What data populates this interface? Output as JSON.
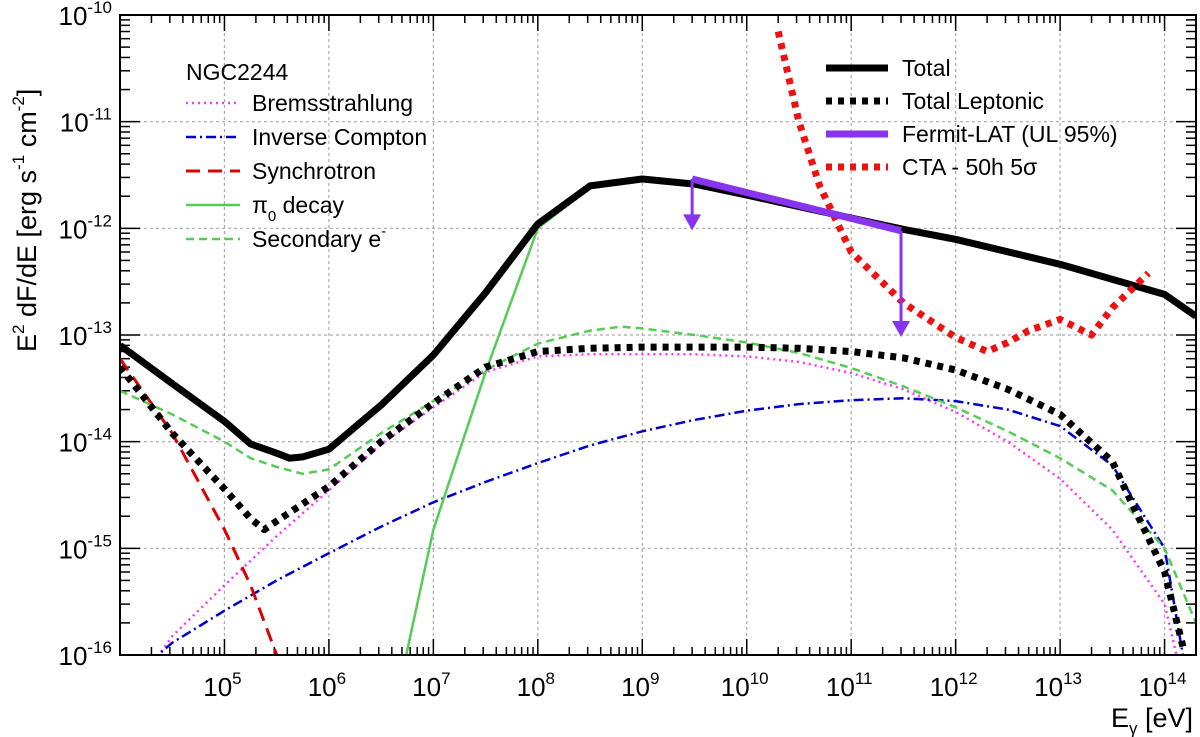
{
  "chart_data": {
    "type": "line",
    "x_scale": "log",
    "y_scale": "log",
    "xlim": [
      10000,
      200000000000000
    ],
    "ylim": [
      1e-16,
      1e-10
    ],
    "grid": true,
    "xlabel": "E",
    "xlabel_sub": "γ",
    "xlabel_unit": "[eV]",
    "ylabel_parts": [
      "E",
      "2",
      " dF/dE [erg s",
      "-1",
      " cm",
      "-2",
      "]"
    ],
    "x_ticks": [
      {
        "exp": 5,
        "label_base": "10",
        "label_exp": "5"
      },
      {
        "exp": 6,
        "label_base": "10",
        "label_exp": "6"
      },
      {
        "exp": 7,
        "label_base": "10",
        "label_exp": "7"
      },
      {
        "exp": 8,
        "label_base": "10",
        "label_exp": "8"
      },
      {
        "exp": 9,
        "label_base": "10",
        "label_exp": "9"
      },
      {
        "exp": 10,
        "label_base": "10",
        "label_exp": "10"
      },
      {
        "exp": 11,
        "label_base": "10",
        "label_exp": "11"
      },
      {
        "exp": 12,
        "label_base": "10",
        "label_exp": "12"
      },
      {
        "exp": 13,
        "label_base": "10",
        "label_exp": "13"
      },
      {
        "exp": 14,
        "label_base": "10",
        "label_exp": "14"
      }
    ],
    "y_ticks": [
      {
        "exp": -16,
        "label_base": "10",
        "label_exp": "-16"
      },
      {
        "exp": -15,
        "label_base": "10",
        "label_exp": "-15"
      },
      {
        "exp": -14,
        "label_base": "10",
        "label_exp": "-14"
      },
      {
        "exp": -13,
        "label_base": "10",
        "label_exp": "-13"
      },
      {
        "exp": -12,
        "label_base": "10",
        "label_exp": "-12"
      },
      {
        "exp": -11,
        "label_base": "10",
        "label_exp": "-11"
      },
      {
        "exp": -10,
        "label_base": "10",
        "label_exp": "-10"
      }
    ],
    "legend_left": {
      "title": "NGC2244",
      "placement": "top-left",
      "entries": [
        {
          "series": "bremsstrahlung",
          "text": "Bremsstrahlung"
        },
        {
          "series": "inverse_compton",
          "text": "Inverse Compton"
        },
        {
          "series": "synchrotron",
          "text": "Synchrotron"
        },
        {
          "series": "pi0_decay",
          "text": "π",
          "sub": "0",
          "text_after": " decay"
        },
        {
          "series": "secondary_e",
          "text": "Secondary e",
          "sup": "-"
        }
      ]
    },
    "legend_right": {
      "placement": "top-right",
      "entries": [
        {
          "series": "total",
          "text": "Total"
        },
        {
          "series": "total_leptonic",
          "text": "Total Leptonic"
        },
        {
          "series": "fermi_ul",
          "text": "Fermit-LAT (UL 95%)"
        },
        {
          "series": "cta",
          "text": "CTA - 50h 5σ"
        }
      ]
    },
    "series": [
      {
        "key": "total",
        "color": "#000000",
        "width": 7,
        "dash": "",
        "x": [
          10000,
          31600,
          100000,
          178000,
          316000,
          420000,
          562000,
          1000000,
          3160000,
          10000000,
          31600000,
          100000000,
          316000000,
          1000000000,
          3160000000,
          10000000000,
          31600000000,
          100000000000,
          316000000000,
          1000000000000,
          10000000000000,
          100000000000000,
          200000000000000
        ],
        "y": [
          8e-14,
          3.5e-14,
          1.55e-14,
          9.5e-15,
          7.8e-15,
          7e-15,
          7.2e-15,
          8.5e-15,
          2.2e-14,
          6.5e-14,
          2.5e-13,
          1.1e-12,
          2.5e-12,
          2.9e-12,
          2.6e-12,
          2.05e-12,
          1.6e-12,
          1.25e-12,
          9.8e-13,
          7.9e-13,
          4.6e-13,
          2.4e-13,
          1.5e-13
        ]
      },
      {
        "key": "total_leptonic",
        "color": "#000000",
        "width": 7,
        "dash": "6,6",
        "x": [
          10000,
          31600,
          100000,
          178000,
          240000,
          316000,
          1000000,
          3160000,
          10000000,
          31600000,
          100000000,
          316000000,
          1000000000,
          3160000000,
          10000000000,
          31600000000,
          100000000000,
          316000000000,
          1000000000000,
          3160000000000,
          10000000000000,
          31600000000000,
          50000000000000,
          100000000000000,
          150000000000000
        ],
        "y": [
          5e-14,
          1.2e-14,
          3.6e-15,
          1.9e-15,
          1.5e-15,
          1.8e-15,
          3.8e-15,
          1e-14,
          2.3e-14,
          5e-14,
          7e-14,
          7.5e-14,
          7.7e-14,
          7.7e-14,
          7.7e-14,
          7.5e-14,
          7e-14,
          6.1e-14,
          4.7e-14,
          3.1e-14,
          1.8e-14,
          6.5e-15,
          2.5e-15,
          6e-16,
          1.2e-16
        ]
      },
      {
        "key": "bremsstrahlung",
        "color": "#ff33ff",
        "width": 2.5,
        "dash": "2,4",
        "x": [
          10000,
          31600,
          100000,
          316000,
          1000000,
          3160000,
          10000000,
          31600000,
          100000000,
          316000000,
          1000000000,
          3160000000,
          10000000000,
          31600000000,
          100000000000,
          316000000000,
          1000000000000,
          3160000000000,
          10000000000000,
          31600000000000,
          100000000000000,
          130000000000000
        ],
        "y": [
          3e-17,
          1.5e-16,
          4.5e-16,
          1.3e-15,
          3.5e-15,
          9.5e-15,
          2.1e-14,
          4.5e-14,
          6.3e-14,
          6.6e-14,
          6.6e-14,
          6.6e-14,
          6.3e-14,
          5.6e-14,
          4.4e-14,
          3.1e-14,
          1.9e-14,
          1e-14,
          4.5e-15,
          1.5e-15,
          3e-16,
          1e-16
        ]
      },
      {
        "key": "inverse_compton",
        "color": "#0000cc",
        "width": 2.5,
        "dash": "10,4,2,4",
        "x": [
          10000,
          31600,
          100000,
          316000,
          1000000,
          3160000,
          10000000,
          31600000,
          100000000,
          316000000,
          1000000000,
          3160000000,
          10000000000,
          31600000000,
          100000000000,
          316000000000,
          1000000000000,
          3160000000000,
          10000000000000,
          31600000000000,
          100000000000000,
          150000000000000
        ],
        "y": [
          5e-17,
          1.3e-16,
          2.6e-16,
          5e-16,
          9e-16,
          1.6e-15,
          2.7e-15,
          4.2e-15,
          6.3e-15,
          9.2e-15,
          1.25e-14,
          1.6e-14,
          1.95e-14,
          2.25e-14,
          2.45e-14,
          2.55e-14,
          2.4e-14,
          2e-14,
          1.4e-14,
          6e-15,
          1e-15,
          1e-16
        ]
      },
      {
        "key": "synchrotron",
        "color": "#dd0000",
        "width": 3,
        "dash": "14,8",
        "x": [
          10000,
          31600,
          100000,
          178000,
          316000
        ],
        "y": [
          6e-14,
          1.2e-14,
          1.5e-15,
          4.5e-16,
          1e-16
        ]
      },
      {
        "key": "pi0_decay",
        "color": "#55cc55",
        "width": 2.5,
        "dash": "",
        "x": [
          5500000,
          10000000,
          31600000,
          100000000,
          316000000,
          1000000000,
          3160000000,
          10000000000,
          31600000000,
          100000000000,
          316000000000,
          1000000000000,
          10000000000000,
          100000000000000,
          200000000000000
        ],
        "y": [
          1e-16,
          1.5e-15,
          4.5e-14,
          1e-12,
          2.4e-12,
          2.8e-12,
          2.5e-12,
          2e-12,
          1.55e-12,
          1.2e-12,
          9.3e-13,
          7.5e-13,
          4.4e-13,
          2.3e-13,
          1.5e-13
        ]
      },
      {
        "key": "secondary_e",
        "color": "#55cc55",
        "width": 2.5,
        "dash": "8,5",
        "x": [
          10000,
          31600,
          100000,
          178000,
          316000,
          562000,
          1000000,
          3160000,
          10000000,
          31600000,
          100000000,
          316000000,
          630000000,
          1000000000,
          3160000000,
          10000000000,
          31600000000,
          100000000000,
          316000000000,
          1000000000000,
          3160000000000,
          10000000000000,
          31600000000000,
          100000000000000,
          200000000000000
        ],
        "y": [
          3e-14,
          1.8e-14,
          1e-14,
          7e-15,
          5.8e-15,
          5e-15,
          5.5e-15,
          1.2e-14,
          2.4e-14,
          4.7e-14,
          8.3e-14,
          1.1e-13,
          1.2e-13,
          1.15e-13,
          1e-13,
          8.5e-14,
          6.8e-14,
          4.9e-14,
          3.3e-14,
          2.1e-14,
          1.25e-14,
          7e-15,
          3.5e-15,
          1e-15,
          2e-16
        ]
      },
      {
        "key": "cta",
        "color": "#ee1111",
        "width": 7,
        "dash": "6,6",
        "x": [
          20000000000,
          31600000000,
          50000000000,
          100000000000,
          316000000000,
          1000000000000,
          2000000000000,
          3160000000000,
          5000000000000,
          10000000000000,
          20000000000000,
          31600000000000,
          70000000000000
        ],
        "y": [
          7e-11,
          1e-11,
          2.5e-12,
          6e-13,
          2e-13,
          9.5e-14,
          7e-14,
          8.5e-14,
          1.1e-13,
          1.4e-13,
          1e-13,
          1.8e-13,
          3.8e-13
        ]
      },
      {
        "key": "fermi_ul",
        "color": "#8833ee",
        "width": 7,
        "dash": "",
        "x": [
          3000000000,
          300000000000
        ],
        "y": [
          2.9e-12,
          9.5e-13
        ]
      }
    ],
    "upper_limit_arrows": [
      {
        "x": 3000000000,
        "y_from": 2.9e-12,
        "y_to": 1e-12,
        "color": "#8833ee"
      },
      {
        "x": 300000000000,
        "y_from": 9.5e-13,
        "y_to": 1e-13,
        "color": "#8833ee"
      }
    ]
  }
}
